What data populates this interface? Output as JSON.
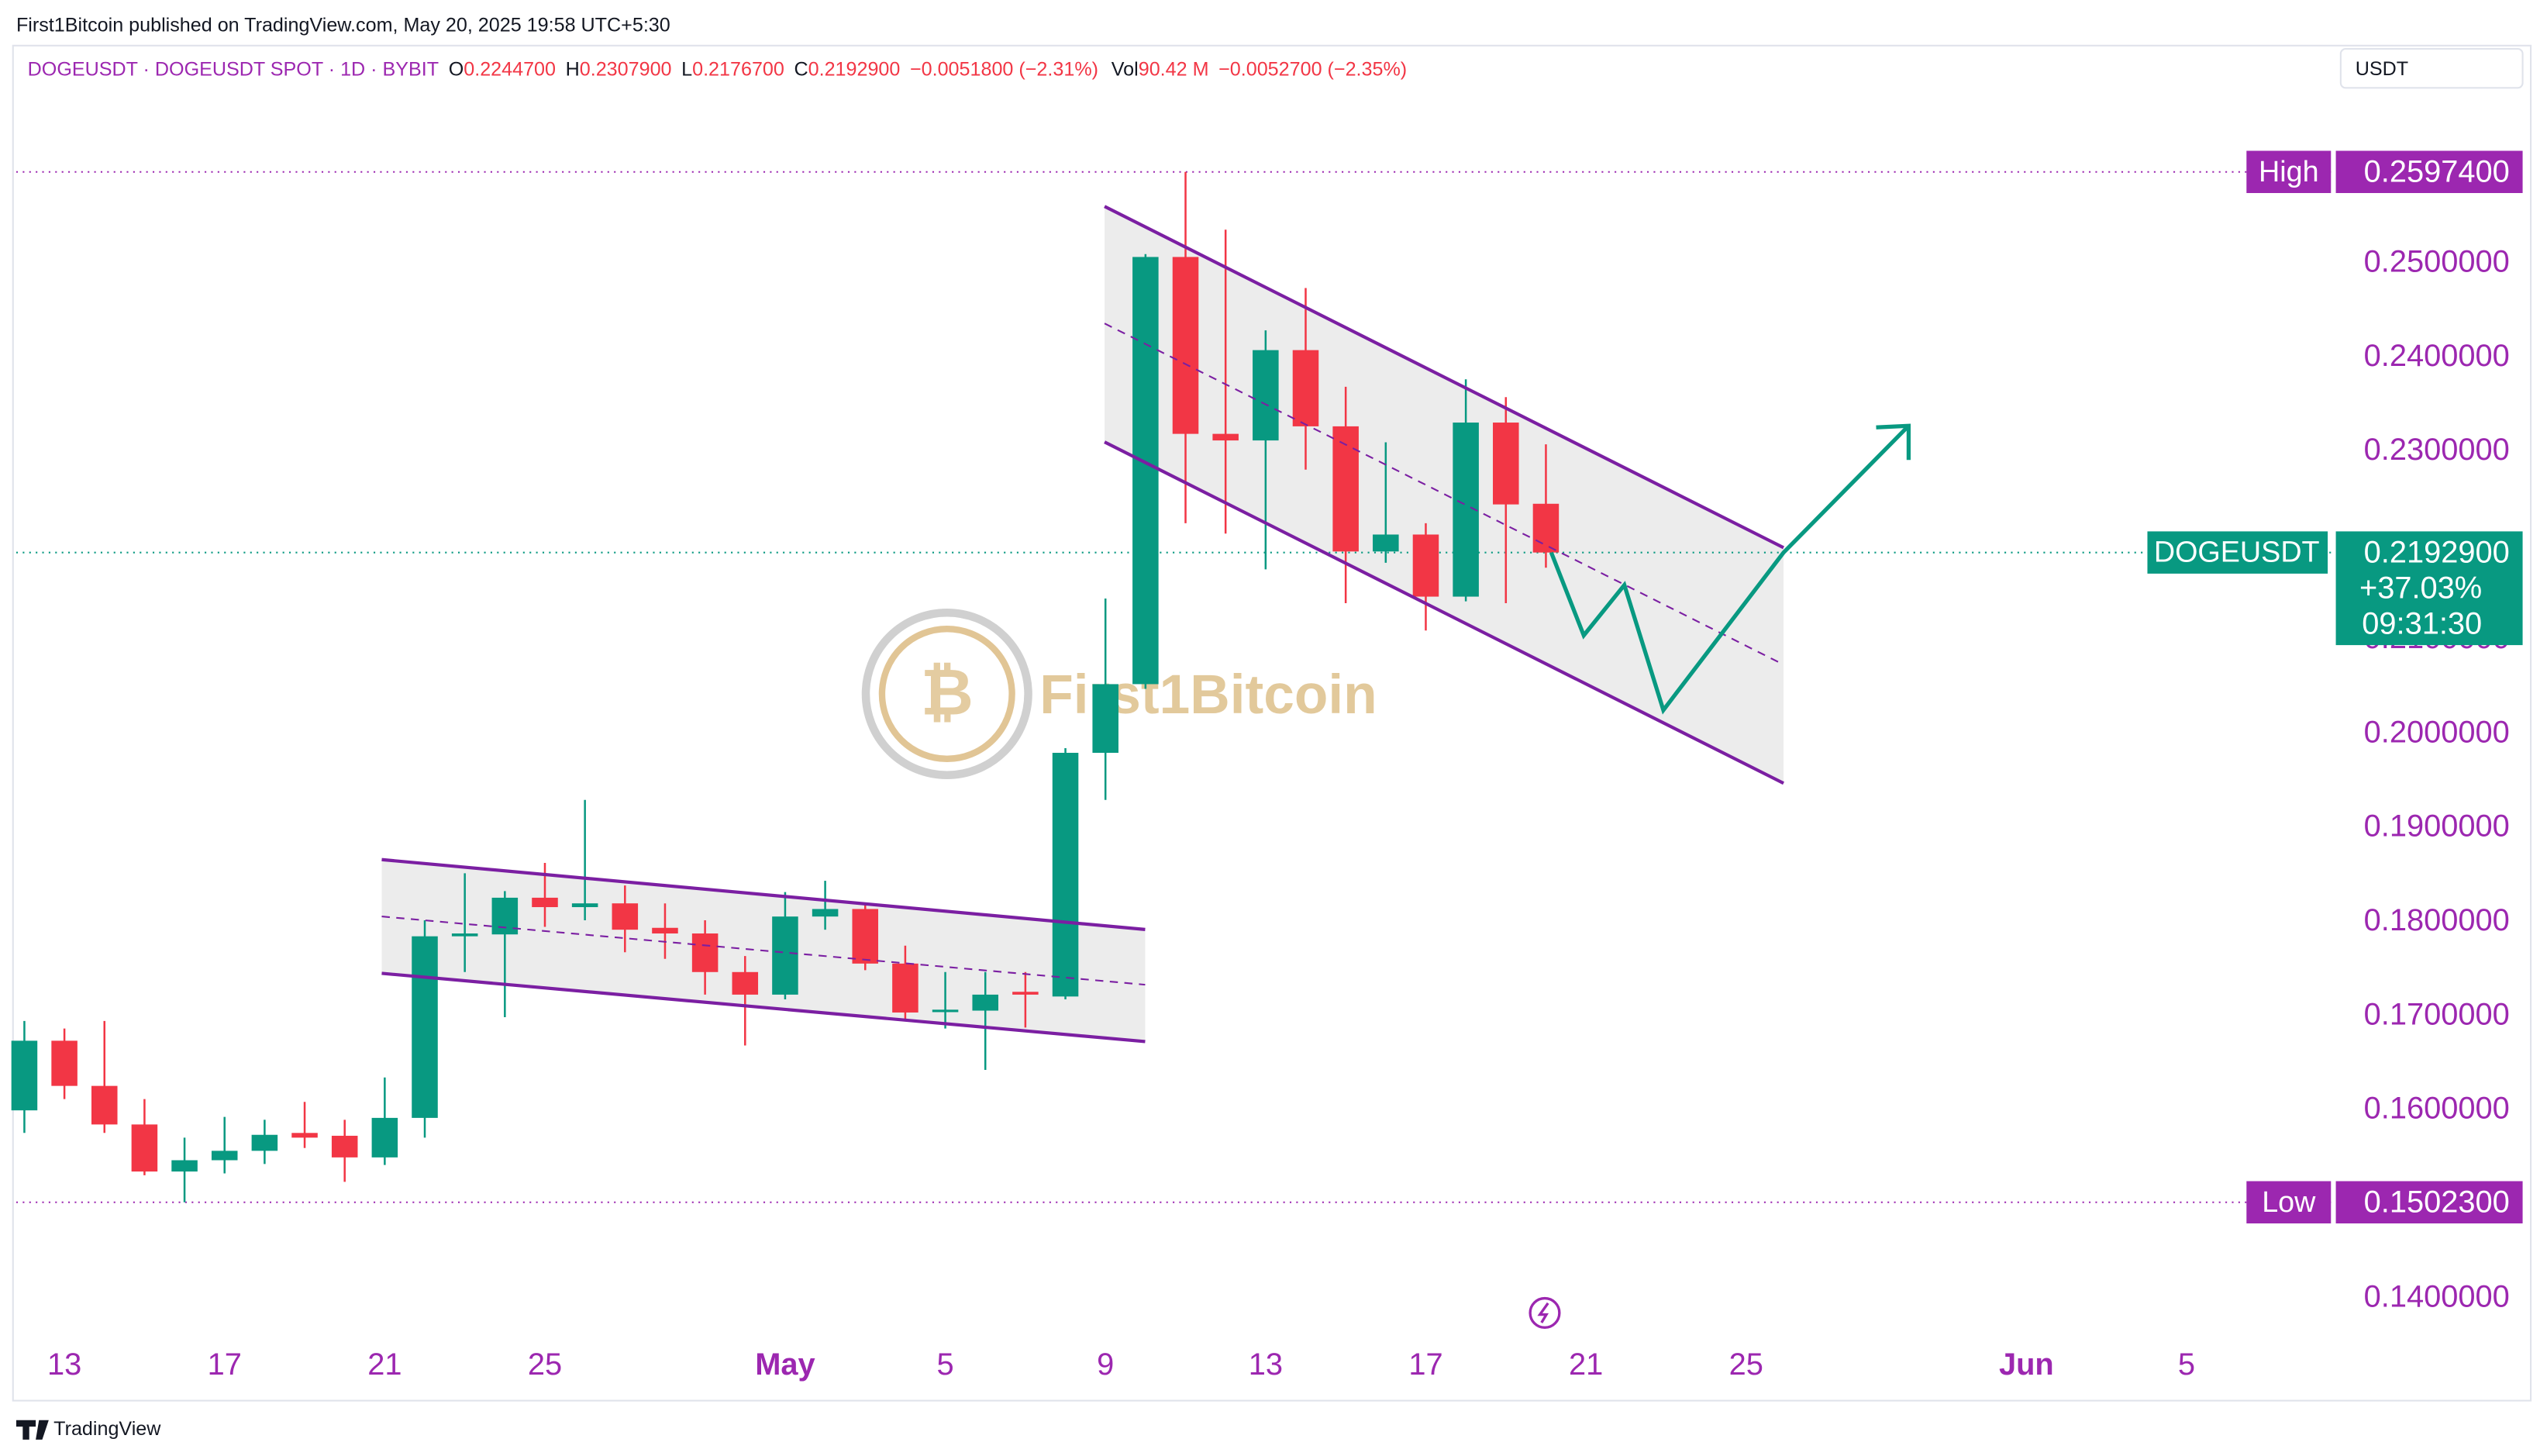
{
  "credit": "First1Bitcoin published on TradingView.com, May 20, 2025 19:58 UTC+5:30",
  "header": {
    "symbol": "DOGEUSDT · DOGEUSDT SPOT · 1D · BYBIT",
    "fields": [
      {
        "label": "O",
        "value": "0.2244700"
      },
      {
        "label": "H",
        "value": "0.2307900"
      },
      {
        "label": "L",
        "value": "0.2176700"
      },
      {
        "label": "C",
        "value": "0.2192900"
      }
    ],
    "change": "−0.0051800 (−2.31%)",
    "volume": {
      "label": "Vol",
      "value": "90.42 M"
    },
    "volume_change": "−0.0052700 (−2.35%)"
  },
  "currency_button": "USDT",
  "watermark": "First1Bitcoin",
  "footer": "TradingView",
  "chart_data": {
    "type": "candlestick",
    "categories": [
      null,
      "13",
      null,
      null,
      null,
      "17",
      null,
      null,
      null,
      "21",
      null,
      null,
      null,
      "25",
      null,
      null,
      null,
      null,
      null,
      "May",
      null,
      null,
      null,
      "5",
      null,
      null,
      null,
      "9",
      null,
      null,
      null,
      "13",
      null,
      null,
      null,
      "17",
      null,
      null,
      null,
      "21",
      null,
      null,
      null,
      "25",
      null,
      null,
      null,
      null,
      null,
      null,
      "Jun",
      null,
      null,
      null,
      "5",
      null,
      null,
      null
    ],
    "open": [
      0.16,
      0.1674,
      0.1626,
      0.1585,
      0.1535,
      0.1547,
      0.1557,
      0.1576,
      0.1573,
      0.155,
      0.1592,
      0.1785,
      0.1787,
      0.1826,
      0.1816,
      0.182,
      0.1794,
      0.1788,
      0.1747,
      0.1723,
      0.1806,
      0.1814,
      0.1756,
      0.1705,
      0.1706,
      0.1726,
      0.1721,
      0.198,
      0.2053,
      0.2507,
      0.2319,
      0.2312,
      0.2408,
      0.2327,
      0.2194,
      0.2212,
      0.2146,
      0.2331,
      0.22447,
      null,
      null,
      null,
      null,
      null,
      null,
      null,
      null,
      null,
      null,
      null,
      null,
      null,
      null,
      null,
      null,
      null,
      null,
      null
    ],
    "high": [
      0.1695,
      0.1687,
      0.1695,
      0.1612,
      0.1571,
      0.1593,
      0.159,
      0.1609,
      0.159,
      0.1635,
      0.1802,
      0.1852,
      0.1833,
      0.1863,
      0.193,
      0.1839,
      0.182,
      0.1802,
      0.1764,
      0.1832,
      0.1844,
      0.182,
      0.1775,
      0.1747,
      0.1747,
      0.1747,
      0.1985,
      0.2144,
      0.251,
      0.25974,
      0.2536,
      0.2429,
      0.2474,
      0.2369,
      0.231,
      0.2224,
      0.2377,
      0.2358,
      0.23079,
      null,
      null,
      null,
      null,
      null,
      null,
      null,
      null,
      null,
      null,
      null,
      null,
      null,
      null,
      null,
      null,
      null,
      null,
      null
    ],
    "low": [
      0.1576,
      0.1612,
      0.1576,
      0.1531,
      0.15023,
      0.1533,
      0.1543,
      0.156,
      0.1524,
      0.1542,
      0.1571,
      0.1747,
      0.1699,
      0.1795,
      0.1802,
      0.1768,
      0.1761,
      0.1723,
      0.1669,
      0.1718,
      0.1792,
      0.1749,
      0.1695,
      0.1687,
      0.1643,
      0.1688,
      0.1718,
      0.193,
      0.2048,
      0.2224,
      0.2213,
      0.2175,
      0.2281,
      0.2139,
      0.2182,
      0.211,
      0.2141,
      0.2139,
      0.21767,
      null,
      null,
      null,
      null,
      null,
      null,
      null,
      null,
      null,
      null,
      null,
      null,
      null,
      null,
      null,
      null,
      null,
      null,
      null
    ],
    "close": [
      0.1674,
      0.1626,
      0.1585,
      0.1535,
      0.1547,
      0.1557,
      0.1574,
      0.1571,
      0.155,
      0.1592,
      0.1785,
      0.1788,
      0.1826,
      0.1816,
      0.182,
      0.1792,
      0.1788,
      0.1747,
      0.1723,
      0.1806,
      0.1814,
      0.1756,
      0.1704,
      0.1707,
      0.1723,
      0.1723,
      0.198,
      0.2053,
      0.2507,
      0.2319,
      0.2312,
      0.2408,
      0.2327,
      0.2194,
      0.2212,
      0.2146,
      0.2331,
      0.2244,
      0.21929,
      null,
      null,
      null,
      null,
      null,
      null,
      null,
      null,
      null,
      null,
      null,
      null,
      null,
      null,
      null,
      null,
      null,
      null,
      null
    ],
    "up_color": "#089981",
    "down_color": "#f23645",
    "ylim": [
      0.1364,
      0.278
    ],
    "yticks": [
      {
        "value": 0.14,
        "label": "0.1400000"
      },
      {
        "value": 0.15,
        "label": "0.1500000"
      },
      {
        "value": 0.16,
        "label": "0.1600000"
      },
      {
        "value": 0.17,
        "label": "0.1700000"
      },
      {
        "value": 0.18,
        "label": "0.1800000"
      },
      {
        "value": 0.19,
        "label": "0.1900000"
      },
      {
        "value": 0.2,
        "label": "0.2000000"
      },
      {
        "value": 0.21,
        "label": "0.2100000"
      },
      {
        "value": 0.22,
        "label": "0.2200000"
      },
      {
        "value": 0.23,
        "label": "0.2300000"
      },
      {
        "value": 0.24,
        "label": "0.2400000"
      },
      {
        "value": 0.25,
        "label": "0.2500000"
      }
    ],
    "grid": false,
    "high_line": {
      "label": "High",
      "value": 0.25974,
      "text": "0.2597400"
    },
    "low_line": {
      "label": "Low",
      "value": 0.15023,
      "text": "0.1502300"
    },
    "last_price": {
      "label": "DOGEUSDT",
      "value": 0.21929,
      "text": "0.2192900",
      "change": "+37.03%",
      "countdown": "09:31:30"
    }
  }
}
